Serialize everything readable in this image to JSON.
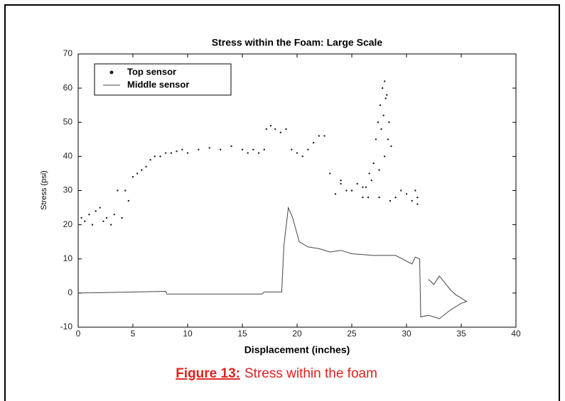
{
  "chart_data": {
    "type": "line",
    "title": "Stress within the Foam: Large Scale",
    "x_label": "Displacement (inches)",
    "y_label": "Stress (psi)",
    "caption": {
      "label": "Figure 13:",
      "text": "Stress within the foam"
    },
    "xlim": [
      0,
      40
    ],
    "xticks": [
      0,
      5,
      10,
      15,
      20,
      25,
      30,
      35,
      40
    ],
    "ylim": [
      -10,
      70
    ],
    "yticks": [
      -10,
      0,
      10,
      20,
      30,
      40,
      50,
      60,
      70
    ],
    "grid": false,
    "legend": "upper left",
    "series": [
      {
        "name": "Top sensor",
        "color": "#222222",
        "style": "markers",
        "x": [
          0.3,
          0.6,
          1,
          1.3,
          1.6,
          2,
          2.3,
          2.6,
          3,
          3.3,
          3.6,
          4,
          4.3,
          4.6,
          5,
          5.4,
          5.8,
          6.2,
          6.6,
          7,
          7.5,
          8,
          8.5,
          9,
          9.5,
          10,
          11,
          12,
          13,
          14,
          15,
          15.5,
          16,
          16.5,
          17,
          17.2,
          17.6,
          18,
          18.5,
          19,
          19.5,
          20,
          20.5,
          21,
          21.5,
          22,
          22.5,
          23,
          23.5,
          24,
          24.5,
          25,
          25.5,
          26,
          26.3,
          26.6,
          27,
          27.2,
          27.4,
          27.6,
          27.8,
          28,
          28.2,
          28.4,
          28.6,
          28,
          27.9,
          28.1,
          27.7,
          28.3,
          27.5,
          26.8,
          26,
          25,
          24,
          29,
          29.5,
          30,
          30.5,
          31,
          31,
          30.8,
          28.5,
          27.5,
          26.5
        ],
        "values": [
          22,
          21,
          23,
          20,
          24,
          25,
          21,
          22,
          20,
          23,
          30,
          22,
          30,
          27,
          34,
          35,
          36,
          37,
          39,
          40,
          40,
          41,
          41,
          41.5,
          42,
          41,
          42,
          42.5,
          42,
          43,
          42,
          41,
          42,
          41,
          42,
          48,
          49,
          48,
          47,
          48,
          42,
          41,
          40,
          42,
          44,
          46,
          46,
          35,
          29,
          33,
          30,
          30,
          32,
          28,
          31,
          35,
          38,
          45,
          50,
          55,
          60,
          62,
          58,
          50,
          43,
          40,
          52,
          57,
          48,
          45,
          36,
          33,
          31,
          30,
          32,
          28,
          30,
          29,
          27,
          26,
          28,
          30,
          27,
          28,
          28
        ]
      },
      {
        "name": "Middle sensor",
        "color": "#444444",
        "style": "line",
        "x": [
          0,
          8,
          8.1,
          16.8,
          17,
          18.6,
          18.8,
          19.2,
          19.6,
          20.2,
          21,
          22,
          23,
          24,
          25,
          27,
          29,
          30.5,
          30.8,
          31.2,
          31.3,
          32,
          33,
          34,
          35,
          35.5,
          35,
          34.5,
          34,
          33.5,
          33,
          32.5,
          32
        ],
        "values": [
          0,
          0.5,
          -0.3,
          -0.3,
          0.3,
          0.3,
          14,
          25,
          22,
          15,
          13.5,
          13,
          12,
          12.5,
          11.5,
          11,
          11,
          8.5,
          10.5,
          10,
          -7,
          -6.5,
          -7.5,
          -5,
          -3,
          -2.5,
          -1.5,
          -0.5,
          1,
          3,
          5,
          2.5,
          4
        ]
      }
    ]
  }
}
